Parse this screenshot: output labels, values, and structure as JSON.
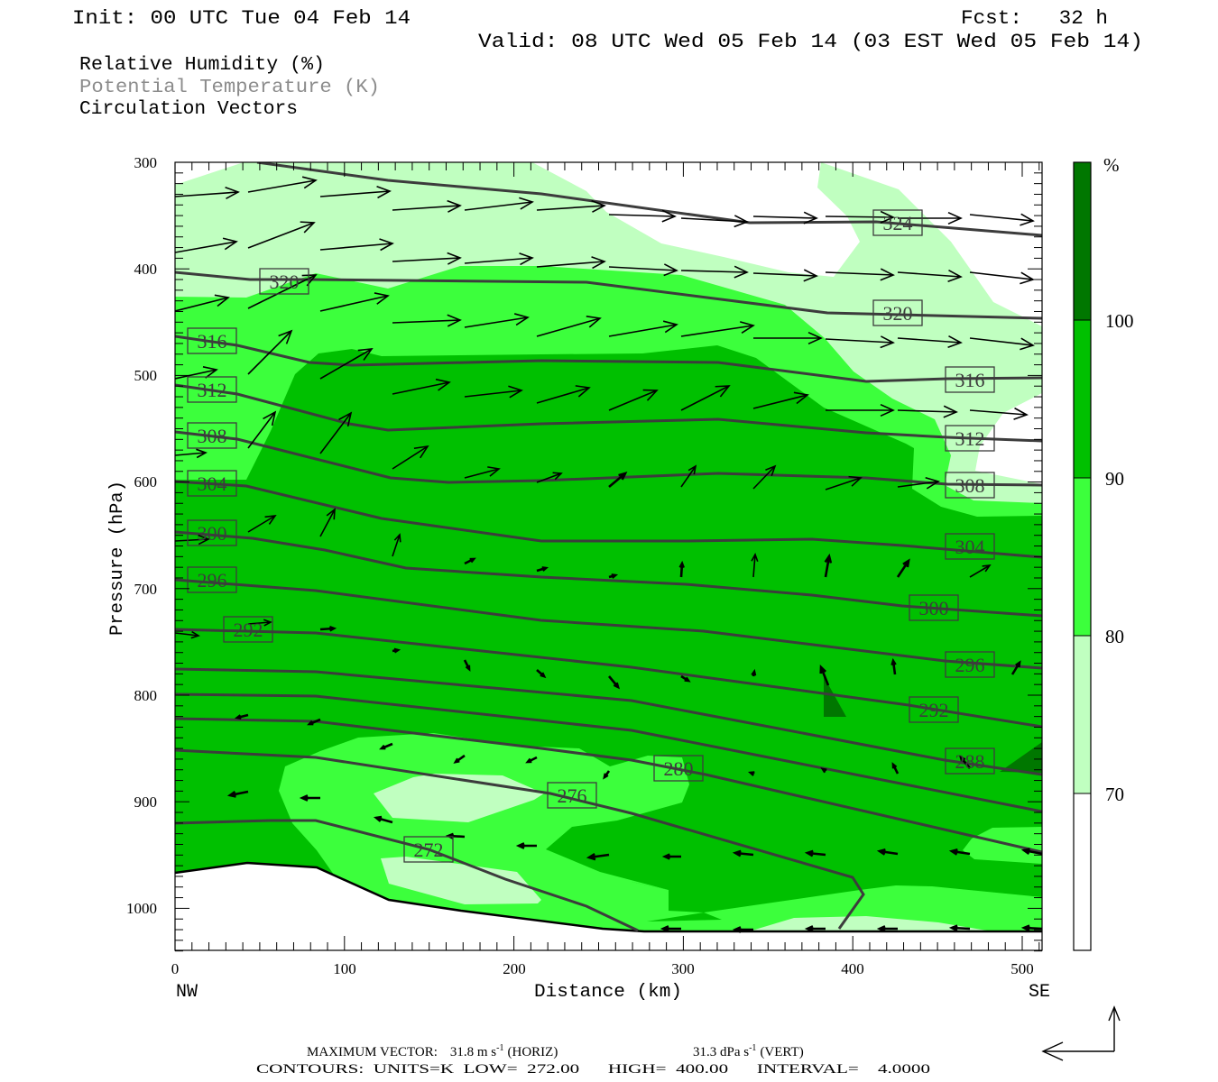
{
  "header": {
    "init": "Init: 00 UTC Tue 04 Feb 14",
    "fcst": "Fcst:   32 h",
    "valid": "Valid: 08 UTC Wed 05 Feb 14 (03 EST Wed 05 Feb 14)"
  },
  "legend": {
    "rh": "Relative Humidity (%)",
    "theta": "Potential Temperature (K)",
    "vectors": "Circulation Vectors"
  },
  "footer": {
    "max_vector": "MAXIMUM VECTOR:",
    "horiz_value": "31.8 m s",
    "horiz_exp": "-1",
    "horiz_tag": "(HORIZ)",
    "vert_value": "31.3 dPa s",
    "vert_exp": "-1",
    "vert_tag": "(VERT)",
    "contours": "CONTOURS:  UNITS=K  LOW=  272.00      HIGH=  400.00      INTERVAL=    4.0000"
  },
  "colors": {
    "rh_100": "#007700",
    "rh_90": "#00c000",
    "rh_80": "#3cff3c",
    "rh_70": "#c0ffc0",
    "isentrope": "#3c3c3c",
    "theta_legend": "#8c8c8c"
  },
  "chart_data": {
    "type": "heatmap",
    "title": "Relative Humidity (%), Potential Temperature (K), Circulation Vectors",
    "xlabel": "Distance (km)",
    "ylabel": "Pressure (hPa)",
    "x_end_labels": {
      "left": "NW",
      "right": "SE"
    },
    "xlim": [
      0,
      512
    ],
    "ylim": [
      1040,
      300
    ],
    "x_ticks": [
      "0",
      "100",
      "200",
      "300",
      "400",
      "500"
    ],
    "y_ticks": [
      "300",
      "400",
      "500",
      "600",
      "700",
      "800",
      "900",
      "1000"
    ],
    "colorbar": {
      "unit": "%",
      "levels": [
        "70",
        "80",
        "90",
        "100"
      ]
    },
    "isentrope_labels": [
      "324",
      "320",
      "320",
      "316",
      "316",
      "312",
      "312",
      "308",
      "308",
      "304",
      "304",
      "300",
      "300",
      "296",
      "296",
      "292",
      "292",
      "288",
      "280",
      "276",
      "272"
    ],
    "isentrope_levels": [
      272,
      276,
      280,
      284,
      288,
      292,
      296,
      300,
      304,
      308,
      312,
      316,
      320,
      324
    ]
  }
}
